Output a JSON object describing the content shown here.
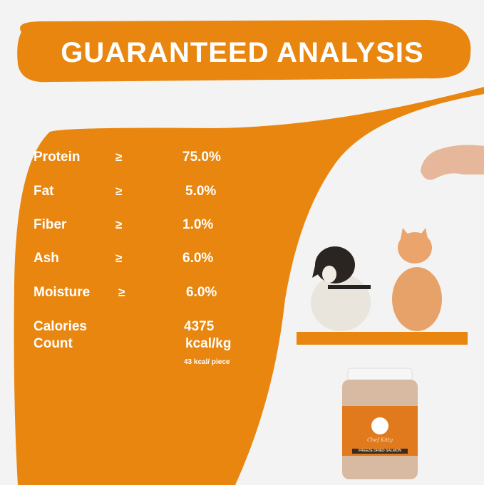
{
  "title": "GUARANTEED ANALYSIS",
  "colors": {
    "accent": "#e8860f",
    "background": "#f3f3f3",
    "text": "#ffffff"
  },
  "analysis": [
    {
      "label": "Protein",
      "symbol": "≥",
      "value": "75.0%"
    },
    {
      "label": "Fat",
      "symbol": "≥",
      "value": "5.0%"
    },
    {
      "label": "Fiber",
      "symbol": "≥",
      "value": "1.0%"
    },
    {
      "label": "Ash",
      "symbol": "≥",
      "value": "6.0%"
    },
    {
      "label": "Moisture",
      "symbol": "≥",
      "value": "6.0%"
    }
  ],
  "calories": {
    "label_line1": "Calories",
    "label_line2": "Count",
    "value_line1": "4375",
    "value_line2": "kcal/kg",
    "per_piece": "43 kcal/ piece"
  },
  "product": {
    "name": "FREEZE DRIED SALMON",
    "brand": "Chef Kitty"
  }
}
